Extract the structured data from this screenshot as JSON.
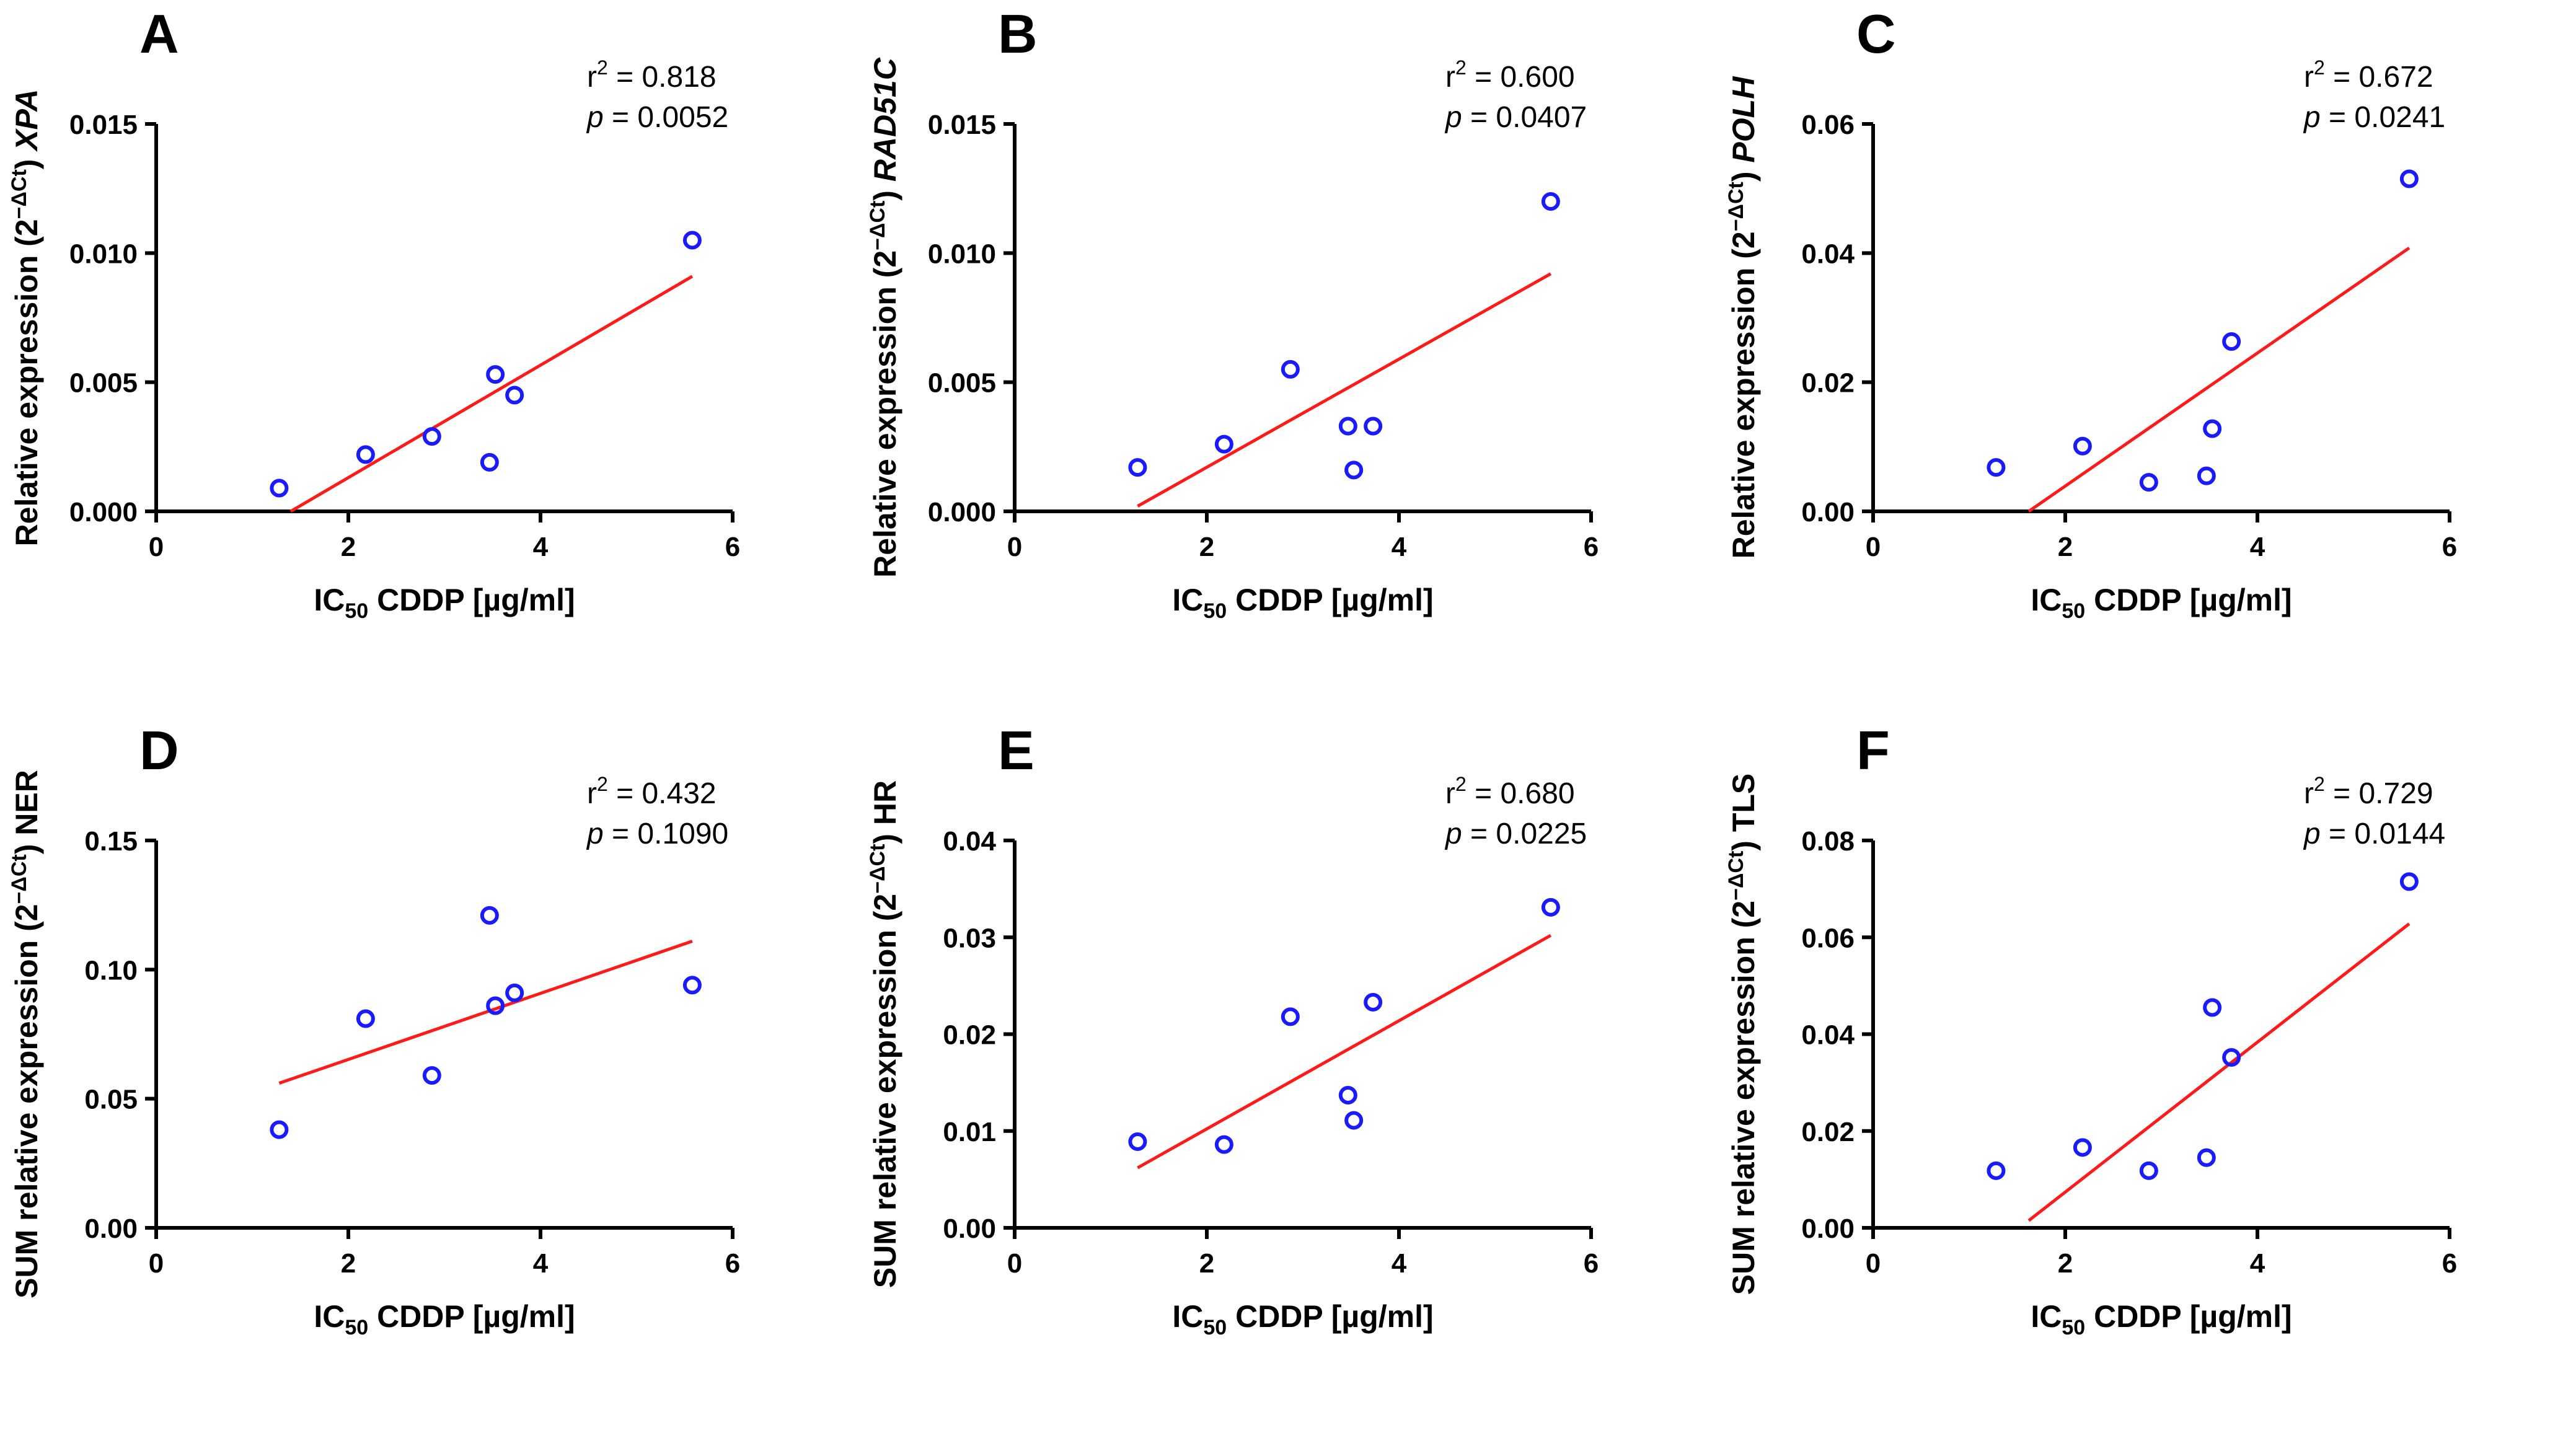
{
  "chart_data": [
    {
      "type": "scatter",
      "panel": "A",
      "title": "",
      "xlabel": {
        "prefix": "IC",
        "sub": "50",
        "suffix": " CDDP [µg/ml]"
      },
      "ylabel": {
        "prefix": "Relative expression (2",
        "sup": "−ΔCt",
        "mid": ") ",
        "gene": "XPA",
        "suffix": ""
      },
      "xlim": [
        0,
        6
      ],
      "ylim": [
        0,
        0.015
      ],
      "xticks": [
        0,
        2,
        4,
        6
      ],
      "xtick_labels": [
        "0",
        "2",
        "4",
        "6"
      ],
      "yticks": [
        0,
        0.005,
        0.01,
        0.015
      ],
      "ytick_labels": [
        "0.000",
        "0.005",
        "0.010",
        "0.015"
      ],
      "x": [
        1.28,
        2.18,
        2.87,
        3.47,
        3.53,
        3.73,
        5.58
      ],
      "y": [
        0.0009,
        0.0022,
        0.0029,
        0.0019,
        0.0053,
        0.0045,
        0.0105
      ],
      "fit": {
        "x": [
          1.4,
          5.58
        ],
        "y": [
          0.0,
          0.0091
        ]
      },
      "r2": "0.818",
      "p": "0.0052"
    },
    {
      "type": "scatter",
      "panel": "B",
      "title": "",
      "xlabel": {
        "prefix": "IC",
        "sub": "50",
        "suffix": " CDDP [µg/ml]"
      },
      "ylabel": {
        "prefix": "Relative expression (2",
        "sup": "−ΔCt",
        "mid": ") ",
        "gene": "RAD51C",
        "suffix": ""
      },
      "xlim": [
        0,
        6
      ],
      "ylim": [
        0,
        0.015
      ],
      "xticks": [
        0,
        2,
        4,
        6
      ],
      "xtick_labels": [
        "0",
        "2",
        "4",
        "6"
      ],
      "yticks": [
        0,
        0.005,
        0.01,
        0.015
      ],
      "ytick_labels": [
        "0.000",
        "0.005",
        "0.010",
        "0.015"
      ],
      "x": [
        1.28,
        2.18,
        2.87,
        3.47,
        3.53,
        3.73,
        5.58
      ],
      "y": [
        0.0017,
        0.0026,
        0.0055,
        0.0033,
        0.0016,
        0.0033,
        0.012
      ],
      "fit": {
        "x": [
          1.28,
          5.58
        ],
        "y": [
          0.0002,
          0.0092
        ]
      },
      "r2": "0.600",
      "p": "0.0407"
    },
    {
      "type": "scatter",
      "panel": "C",
      "title": "",
      "xlabel": {
        "prefix": "IC",
        "sub": "50",
        "suffix": " CDDP [µg/ml]"
      },
      "ylabel": {
        "prefix": "Relative expression (2",
        "sup": "−ΔCt",
        "mid": ") ",
        "gene": "POLH",
        "suffix": ""
      },
      "xlim": [
        0,
        6
      ],
      "ylim": [
        0,
        0.06
      ],
      "xticks": [
        0,
        2,
        4,
        6
      ],
      "xtick_labels": [
        "0",
        "2",
        "4",
        "6"
      ],
      "yticks": [
        0,
        0.02,
        0.04,
        0.06
      ],
      "ytick_labels": [
        "0.00",
        "0.02",
        "0.04",
        "0.06"
      ],
      "x": [
        1.28,
        2.18,
        2.87,
        3.47,
        3.53,
        3.73,
        5.58
      ],
      "y": [
        0.0068,
        0.0101,
        0.0045,
        0.0055,
        0.0128,
        0.0263,
        0.0515
      ],
      "fit": {
        "x": [
          1.62,
          5.58
        ],
        "y": [
          0.0,
          0.0408
        ]
      },
      "r2": "0.672",
      "p": "0.0241"
    },
    {
      "type": "scatter",
      "panel": "D",
      "title": "",
      "xlabel": {
        "prefix": "IC",
        "sub": "50",
        "suffix": " CDDP [µg/ml]"
      },
      "ylabel": {
        "prefix": "SUM relative expression (2",
        "sup": "−ΔCt",
        "mid": ") ",
        "gene": "",
        "suffix": "NER"
      },
      "xlim": [
        0,
        6
      ],
      "ylim": [
        0,
        0.15
      ],
      "xticks": [
        0,
        2,
        4,
        6
      ],
      "xtick_labels": [
        "0",
        "2",
        "4",
        "6"
      ],
      "yticks": [
        0,
        0.05,
        0.1,
        0.15
      ],
      "ytick_labels": [
        "0.00",
        "0.05",
        "0.10",
        "0.15"
      ],
      "x": [
        1.28,
        2.18,
        2.87,
        3.47,
        3.53,
        3.73,
        5.58
      ],
      "y": [
        0.038,
        0.081,
        0.059,
        0.121,
        0.086,
        0.091,
        0.094
      ],
      "fit": {
        "x": [
          1.28,
          5.58
        ],
        "y": [
          0.056,
          0.111
        ]
      },
      "r2": "0.432",
      "p": "0.1090"
    },
    {
      "type": "scatter",
      "panel": "E",
      "title": "",
      "xlabel": {
        "prefix": "IC",
        "sub": "50",
        "suffix": " CDDP [µg/ml]"
      },
      "ylabel": {
        "prefix": "SUM relative expression (2",
        "sup": "−ΔCt",
        "mid": ") ",
        "gene": "",
        "suffix": "HR"
      },
      "xlim": [
        0,
        6
      ],
      "ylim": [
        0,
        0.04
      ],
      "xticks": [
        0,
        2,
        4,
        6
      ],
      "xtick_labels": [
        "0",
        "2",
        "4",
        "6"
      ],
      "yticks": [
        0,
        0.01,
        0.02,
        0.03,
        0.04
      ],
      "ytick_labels": [
        "0.00",
        "0.01",
        "0.02",
        "0.03",
        "0.04"
      ],
      "x": [
        1.28,
        2.18,
        2.87,
        3.47,
        3.53,
        3.73,
        5.58
      ],
      "y": [
        0.0089,
        0.0086,
        0.0218,
        0.0137,
        0.0111,
        0.0233,
        0.0331
      ],
      "fit": {
        "x": [
          1.28,
          5.58
        ],
        "y": [
          0.0062,
          0.0302
        ]
      },
      "r2": "0.680",
      "p": "0.0225"
    },
    {
      "type": "scatter",
      "panel": "F",
      "title": "",
      "xlabel": {
        "prefix": "IC",
        "sub": "50",
        "suffix": " CDDP [µg/ml]"
      },
      "ylabel": {
        "prefix": "SUM relative expression (2",
        "sup": "−ΔCt",
        "mid": ") ",
        "gene": "",
        "suffix": "TLS"
      },
      "xlim": [
        0,
        6
      ],
      "ylim": [
        0,
        0.08
      ],
      "xticks": [
        0,
        2,
        4,
        6
      ],
      "xtick_labels": [
        "0",
        "2",
        "4",
        "6"
      ],
      "yticks": [
        0,
        0.02,
        0.04,
        0.06,
        0.08
      ],
      "ytick_labels": [
        "0.00",
        "0.02",
        "0.04",
        "0.06",
        "0.08"
      ],
      "x": [
        1.28,
        2.18,
        2.87,
        3.47,
        3.53,
        3.73,
        5.58
      ],
      "y": [
        0.0118,
        0.0166,
        0.0118,
        0.0145,
        0.0455,
        0.0352,
        0.0715
      ],
      "fit": {
        "x": [
          1.62,
          5.58
        ],
        "y": [
          0.0015,
          0.0628
        ]
      },
      "r2": "0.729",
      "p": "0.0144"
    }
  ],
  "colors": {
    "points": "#1a1aff",
    "fit": "#ff1a1a",
    "axes": "#000000"
  }
}
